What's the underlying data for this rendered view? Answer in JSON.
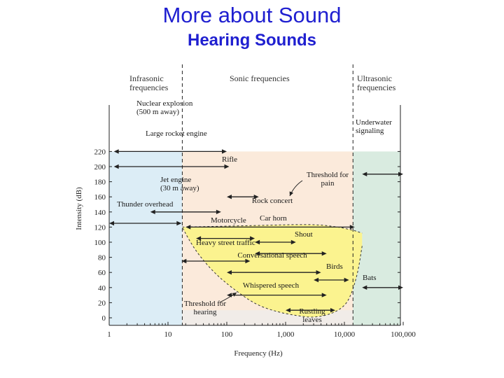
{
  "title": "More about Sound",
  "subtitle": "Hearing Sounds",
  "colors": {
    "title": "#1f1fd0",
    "infrasonic": "#dcedf6",
    "sonic": "#fbeadb",
    "ultrasonic": "#d9ebe0",
    "audible": "#fbf38f",
    "below_hearing": "#f1ece8"
  },
  "regions": {
    "infrasonic": "Infrasonic\nfrequencies",
    "sonic": "Sonic frequencies",
    "ultrasonic": "Ultrasonic\nfrequencies"
  },
  "axes": {
    "x_label": "Frequency (Hz)",
    "y_label": "Intensity (dB)",
    "x_ticks": [
      "1",
      "10",
      "100",
      "1,000",
      "10,000",
      "100,000"
    ],
    "y_ticks": [
      "220",
      "200",
      "180",
      "160",
      "140",
      "120",
      "100",
      "80",
      "60",
      "40",
      "20",
      "0"
    ]
  },
  "sounds": [
    {
      "label": "Nuclear explosion\n(500 m away)",
      "db": 220,
      "f_min": 1.2,
      "f_max": 100
    },
    {
      "label": "Large rocket engine",
      "db": 200,
      "f_min": 1.2,
      "f_max": 110
    },
    {
      "label": "Rifle",
      "db": 160,
      "f_min": 100,
      "f_max": 350
    },
    {
      "label": "Jet engine\n(30 m away)",
      "db": 140,
      "f_min": 5,
      "f_max": 80
    },
    {
      "label": "Thunder overhead",
      "db": 125,
      "f_min": 1,
      "f_max": 17
    },
    {
      "label": "Rock concert",
      "db": 120,
      "f_min": 20,
      "f_max": 15000
    },
    {
      "label": "Motorcycle",
      "db": 105,
      "f_min": 30,
      "f_max": 300
    },
    {
      "label": "Car horn",
      "db": 100,
      "f_min": 300,
      "f_max": 1500
    },
    {
      "label": "Shout",
      "db": 85,
      "f_min": 300,
      "f_max": 5000
    },
    {
      "label": "Heavy street traffic",
      "db": 75,
      "f_min": 17,
      "f_max": 250
    },
    {
      "label": "Conversational speech",
      "db": 60,
      "f_min": 100,
      "f_max": 4000
    },
    {
      "label": "Birds",
      "db": 50,
      "f_min": 3000,
      "f_max": 12000
    },
    {
      "label": "Whispered speech",
      "db": 30,
      "f_min": 100,
      "f_max": 5000
    },
    {
      "label": "Rustling\nleaves",
      "db": 10,
      "f_min": 1000,
      "f_max": 7000
    },
    {
      "label": "Underwater\nsignaling",
      "db": 190,
      "f_min": 20000,
      "f_max": 100000
    },
    {
      "label": "Bats",
      "db": 40,
      "f_min": 20000,
      "f_max": 100000
    }
  ],
  "annotations": {
    "threshold_pain": "Threshold for\npain",
    "threshold_hearing": "Threshold for\nhearing"
  }
}
